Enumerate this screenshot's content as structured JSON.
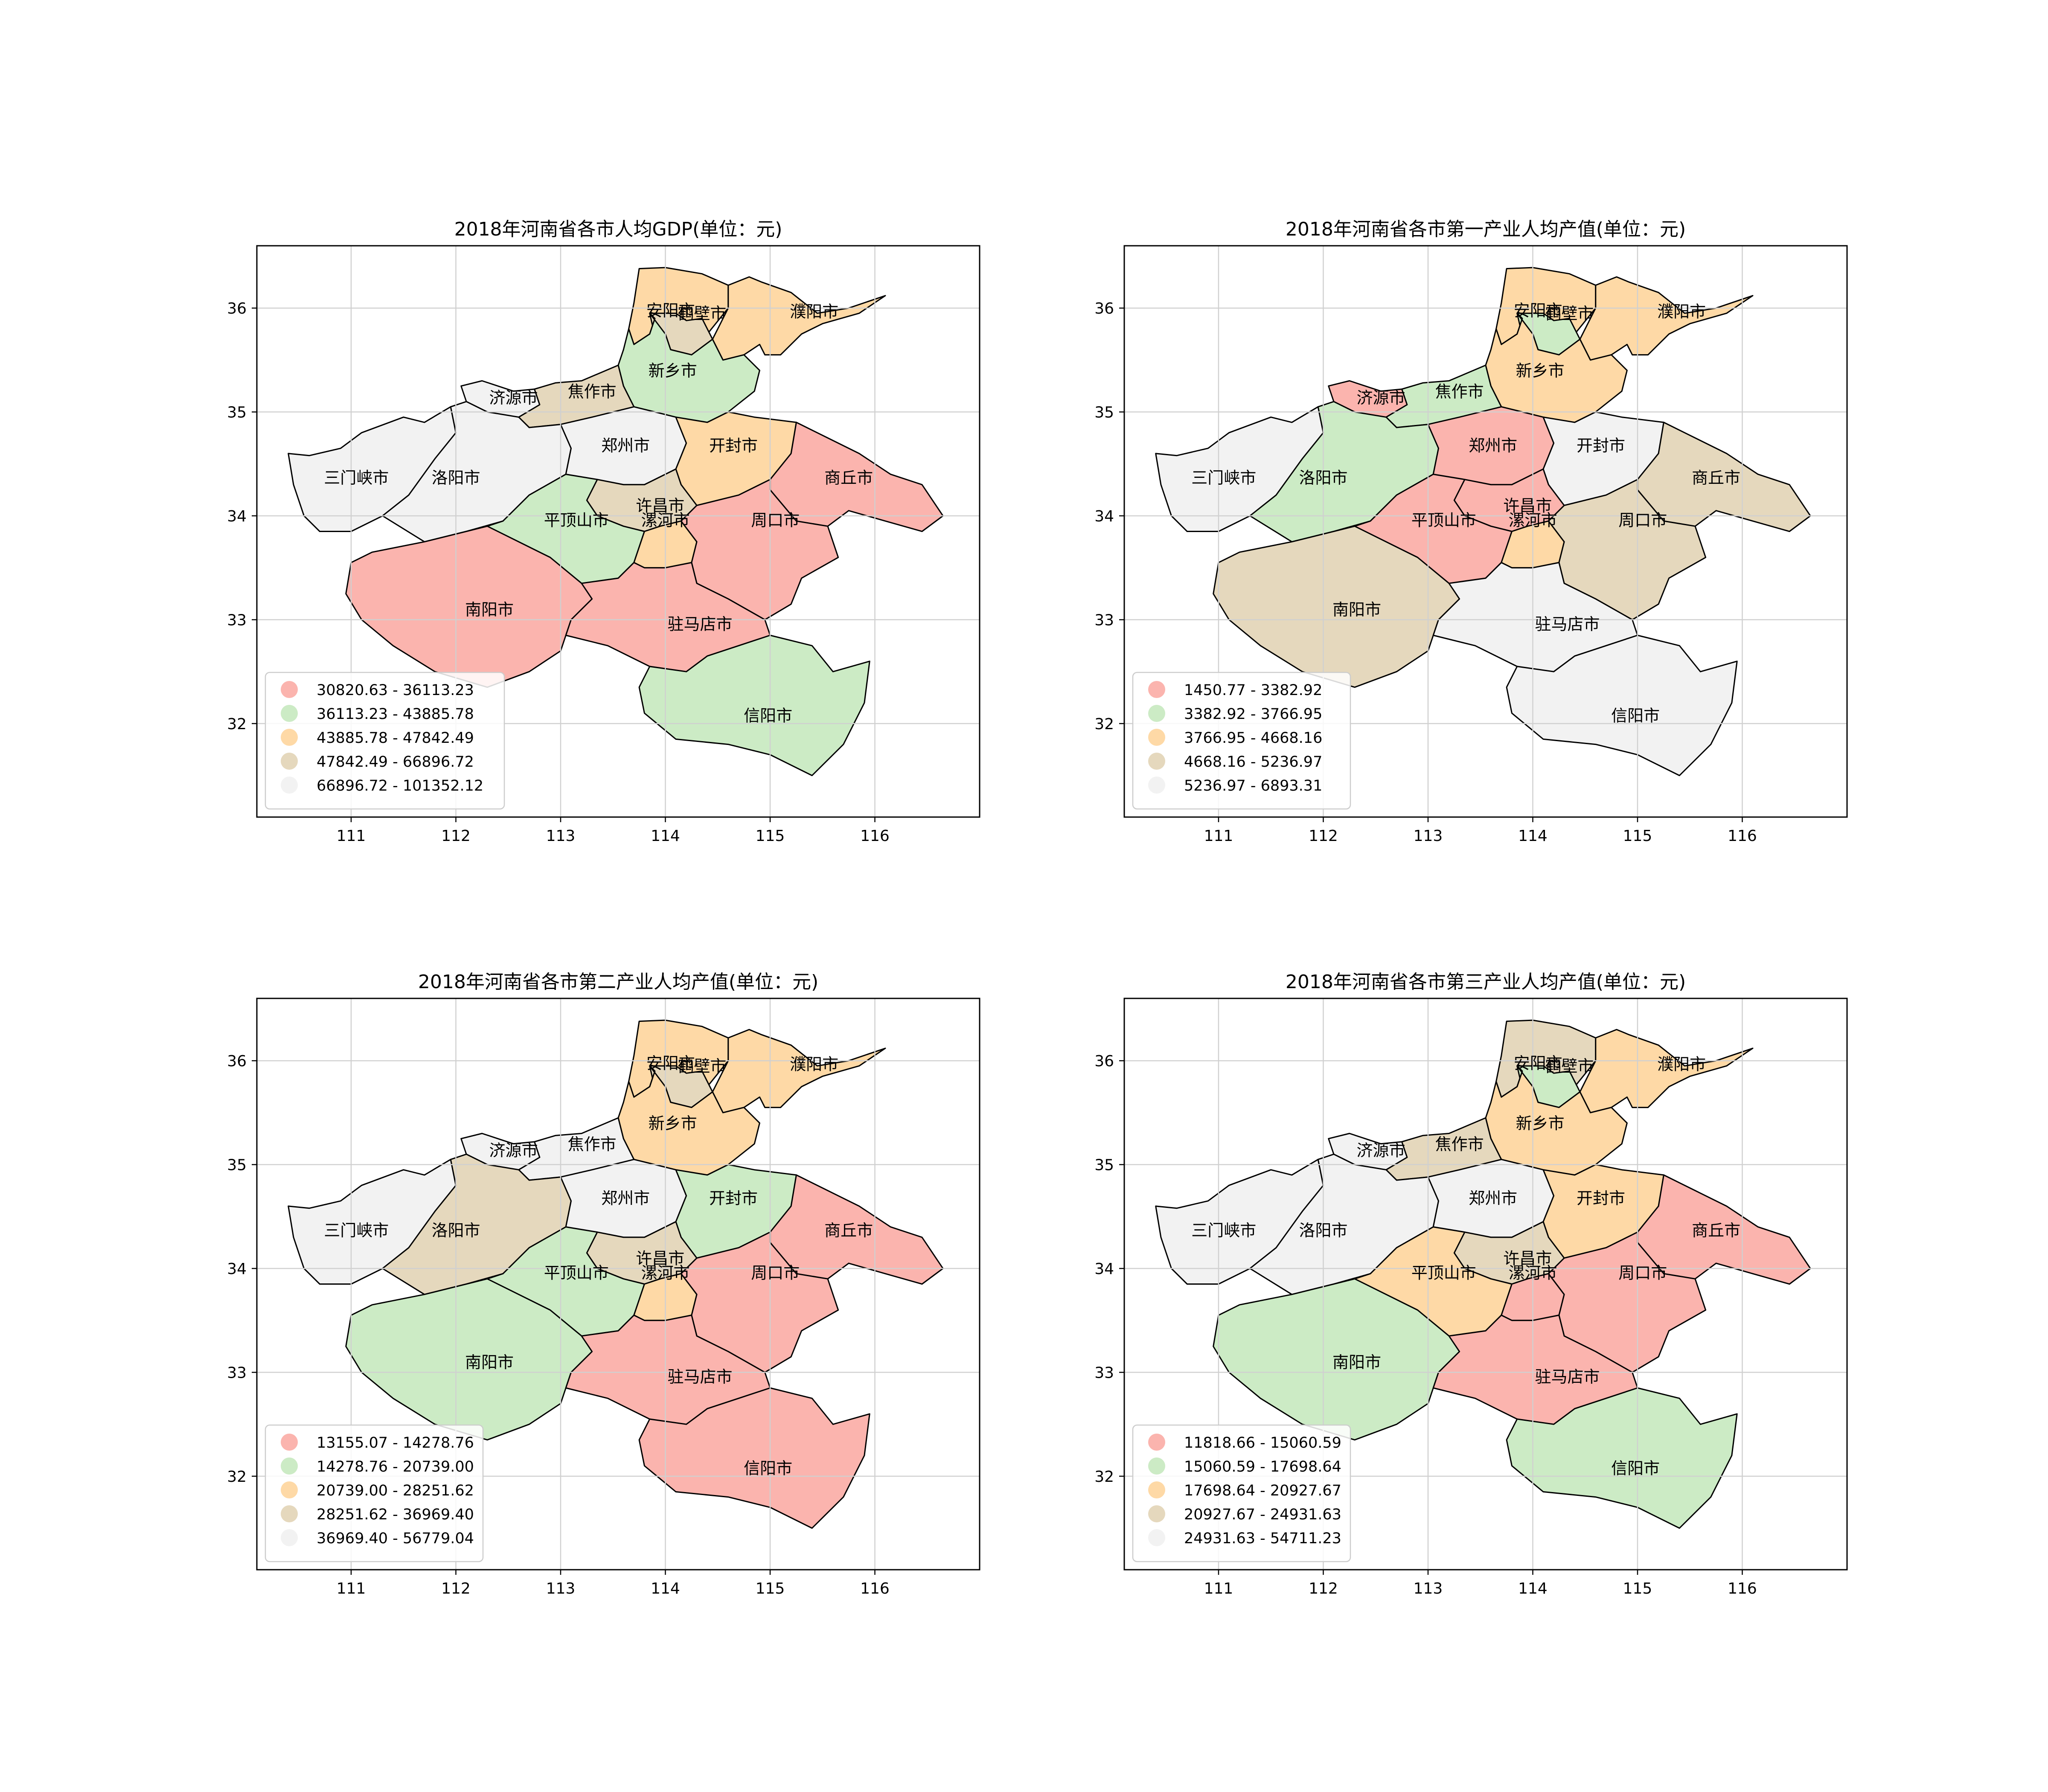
{
  "colors": {
    "class_1": "#fbb4ae",
    "class_2": "#ccebc5",
    "class_3": "#fed9a6",
    "class_4": "#e5d8bd",
    "class_5": "#f2f2f2",
    "border": "#000000",
    "grid": "#d0d0d0"
  },
  "map_extent": {
    "lon": [
      110.1,
      117.0
    ],
    "lat": [
      31.1,
      36.6
    ]
  },
  "x_ticks": [
    "111",
    "112",
    "113",
    "114",
    "115",
    "116"
  ],
  "y_ticks": [
    "32",
    "33",
    "34",
    "35",
    "36"
  ],
  "cities": [
    {
      "id": "anyang",
      "name": "安阳市"
    },
    {
      "id": "hebi",
      "name": "鹤壁市"
    },
    {
      "id": "puyang",
      "name": "濮阳市"
    },
    {
      "id": "xinxiang",
      "name": "新乡市"
    },
    {
      "id": "jiyuan",
      "name": "济源市"
    },
    {
      "id": "jiaozuo",
      "name": "焦作市"
    },
    {
      "id": "sanmenxia",
      "name": "三门峡市"
    },
    {
      "id": "luoyang",
      "name": "洛阳市"
    },
    {
      "id": "zhengzhou",
      "name": "郑州市"
    },
    {
      "id": "kaifeng",
      "name": "开封市"
    },
    {
      "id": "shangqiu",
      "name": "商丘市"
    },
    {
      "id": "xuchang",
      "name": "许昌市"
    },
    {
      "id": "pingdingshan",
      "name": "平顶山市"
    },
    {
      "id": "luohe",
      "name": "漯河市"
    },
    {
      "id": "zhoukou",
      "name": "周口市"
    },
    {
      "id": "nanyang",
      "name": "南阳市"
    },
    {
      "id": "zhumadian",
      "name": "驻马店市"
    },
    {
      "id": "xinyang",
      "name": "信阳市"
    }
  ],
  "panels": [
    {
      "title": "2018年河南省各市人均GDP(单位：元)",
      "legend": [
        "30820.63 - 36113.23",
        "36113.23 - 43885.78",
        "43885.78 - 47842.49",
        "47842.49 - 66896.72",
        "66896.72 - 101352.12"
      ],
      "classes": {
        "anyang": 3,
        "hebi": 4,
        "puyang": 3,
        "xinxiang": 2,
        "jiyuan": 5,
        "jiaozuo": 4,
        "sanmenxia": 5,
        "luoyang": 5,
        "zhengzhou": 5,
        "kaifeng": 3,
        "shangqiu": 1,
        "xuchang": 4,
        "pingdingshan": 2,
        "luohe": 3,
        "zhoukou": 1,
        "nanyang": 1,
        "zhumadian": 1,
        "xinyang": 2
      }
    },
    {
      "title": "2018年河南省各市第一产业人均产值(单位：元)",
      "legend": [
        "1450.77 - 3382.92",
        "3382.92 - 3766.95",
        "3766.95 - 4668.16",
        "4668.16 - 5236.97",
        "5236.97 - 6893.31"
      ],
      "classes": {
        "anyang": 3,
        "hebi": 2,
        "puyang": 3,
        "xinxiang": 3,
        "jiyuan": 1,
        "jiaozuo": 2,
        "sanmenxia": 5,
        "luoyang": 2,
        "zhengzhou": 1,
        "kaifeng": 5,
        "shangqiu": 4,
        "xuchang": 1,
        "pingdingshan": 1,
        "luohe": 3,
        "zhoukou": 4,
        "nanyang": 4,
        "zhumadian": 5,
        "xinyang": 5
      }
    },
    {
      "title": "2018年河南省各市第二产业人均产值(单位：元)",
      "legend": [
        "13155.07 - 14278.76",
        "14278.76 - 20739.00",
        "20739.00 - 28251.62",
        "28251.62 - 36969.40",
        "36969.40 - 56779.04"
      ],
      "classes": {
        "anyang": 3,
        "hebi": 4,
        "puyang": 3,
        "xinxiang": 3,
        "jiyuan": 5,
        "jiaozuo": 5,
        "sanmenxia": 5,
        "luoyang": 4,
        "zhengzhou": 5,
        "kaifeng": 2,
        "shangqiu": 1,
        "xuchang": 4,
        "pingdingshan": 2,
        "luohe": 3,
        "zhoukou": 1,
        "nanyang": 2,
        "zhumadian": 1,
        "xinyang": 1
      }
    },
    {
      "title": "2018年河南省各市第三产业人均产值(单位：元)",
      "legend": [
        "11818.66 - 15060.59",
        "15060.59 - 17698.64",
        "17698.64 - 20927.67",
        "20927.67 - 24931.63",
        "24931.63 - 54711.23"
      ],
      "classes": {
        "anyang": 4,
        "hebi": 2,
        "puyang": 3,
        "xinxiang": 3,
        "jiyuan": 5,
        "jiaozuo": 4,
        "sanmenxia": 5,
        "luoyang": 5,
        "zhengzhou": 5,
        "kaifeng": 3,
        "shangqiu": 1,
        "xuchang": 4,
        "pingdingshan": 3,
        "luohe": 1,
        "zhoukou": 1,
        "nanyang": 2,
        "zhumadian": 1,
        "xinyang": 2
      }
    }
  ]
}
